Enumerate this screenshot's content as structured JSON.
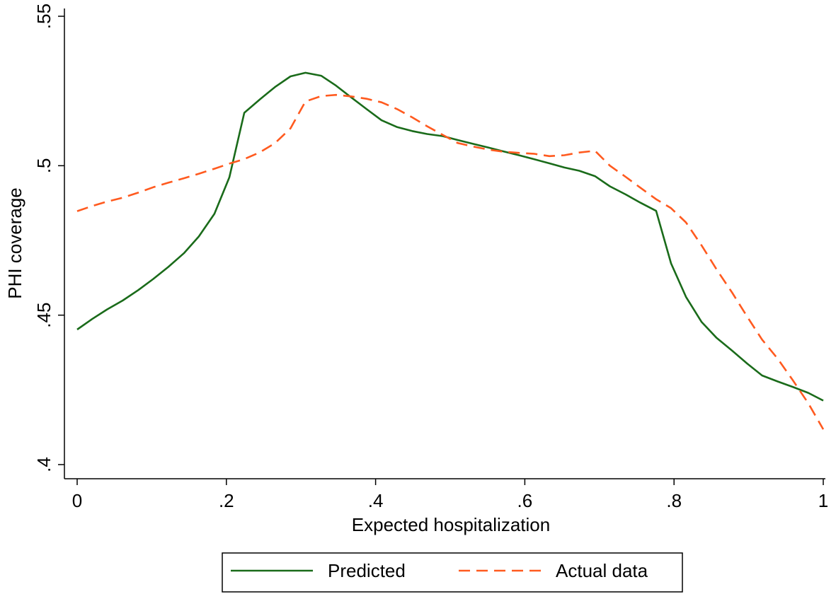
{
  "chart_data": {
    "type": "line",
    "xlabel": "Expected hospitalization",
    "ylabel": "PHI coverage",
    "xlim": [
      0,
      1
    ],
    "ylim": [
      0.4,
      0.55
    ],
    "x_ticks": [
      0,
      0.2,
      0.4,
      0.6,
      0.8,
      1
    ],
    "x_tick_labels": [
      "0",
      ".2",
      ".4",
      ".6",
      ".8",
      "1"
    ],
    "y_ticks": [
      0.4,
      0.45,
      0.5,
      0.55
    ],
    "y_tick_labels": [
      ".4",
      ".45",
      ".5",
      ".55"
    ],
    "grid": false,
    "legend_position": "bottom",
    "series": [
      {
        "name": "Predicted",
        "color": "#1a6b1a",
        "style": "solid",
        "x": [
          0,
          0.02,
          0.04,
          0.061,
          0.082,
          0.102,
          0.122,
          0.143,
          0.163,
          0.184,
          0.204,
          0.224,
          0.245,
          0.265,
          0.286,
          0.306,
          0.327,
          0.347,
          0.367,
          0.388,
          0.408,
          0.429,
          0.449,
          0.469,
          0.49,
          0.51,
          0.531,
          0.551,
          0.571,
          0.592,
          0.612,
          0.633,
          0.653,
          0.673,
          0.694,
          0.714,
          0.735,
          0.755,
          0.776,
          0.796,
          0.816,
          0.837,
          0.857,
          0.878,
          0.898,
          0.918,
          0.939,
          0.959,
          0.98,
          1.0
        ],
        "values": [
          0.4452,
          0.4487,
          0.4519,
          0.4549,
          0.4584,
          0.4621,
          0.4661,
          0.4707,
          0.4763,
          0.4839,
          0.4961,
          0.5177,
          0.5222,
          0.5263,
          0.5299,
          0.5311,
          0.5301,
          0.5268,
          0.5229,
          0.5189,
          0.5152,
          0.5129,
          0.5116,
          0.5106,
          0.5099,
          0.5086,
          0.5073,
          0.5061,
          0.5048,
          0.5035,
          0.5022,
          0.5008,
          0.4994,
          0.4983,
          0.4965,
          0.4931,
          0.4904,
          0.4876,
          0.4849,
          0.4673,
          0.4561,
          0.4477,
          0.4424,
          0.4381,
          0.4338,
          0.4298,
          0.4278,
          0.426,
          0.424,
          0.4214
        ]
      },
      {
        "name": "Actual data",
        "color": "#ff5a1f",
        "style": "dashed",
        "x": [
          0,
          0.02,
          0.04,
          0.061,
          0.082,
          0.102,
          0.122,
          0.143,
          0.163,
          0.184,
          0.204,
          0.224,
          0.245,
          0.265,
          0.286,
          0.306,
          0.327,
          0.347,
          0.367,
          0.388,
          0.408,
          0.429,
          0.449,
          0.469,
          0.49,
          0.51,
          0.531,
          0.551,
          0.571,
          0.592,
          0.612,
          0.633,
          0.653,
          0.673,
          0.694,
          0.714,
          0.735,
          0.755,
          0.776,
          0.796,
          0.816,
          0.837,
          0.857,
          0.878,
          0.898,
          0.918,
          0.939,
          0.959,
          0.98,
          1.0
        ],
        "values": [
          0.4848,
          0.4865,
          0.488,
          0.4893,
          0.491,
          0.4928,
          0.4943,
          0.4958,
          0.4973,
          0.499,
          0.5007,
          0.5022,
          0.5045,
          0.5075,
          0.5125,
          0.5215,
          0.5233,
          0.5237,
          0.5232,
          0.5224,
          0.5212,
          0.5189,
          0.5162,
          0.5132,
          0.5103,
          0.5076,
          0.5064,
          0.5054,
          0.5047,
          0.5043,
          0.504,
          0.5032,
          0.5035,
          0.5044,
          0.505,
          0.5,
          0.4963,
          0.4926,
          0.4888,
          0.4858,
          0.481,
          0.4733,
          0.4653,
          0.4575,
          0.4495,
          0.4418,
          0.4354,
          0.4283,
          0.4205,
          0.4118
        ]
      }
    ]
  }
}
